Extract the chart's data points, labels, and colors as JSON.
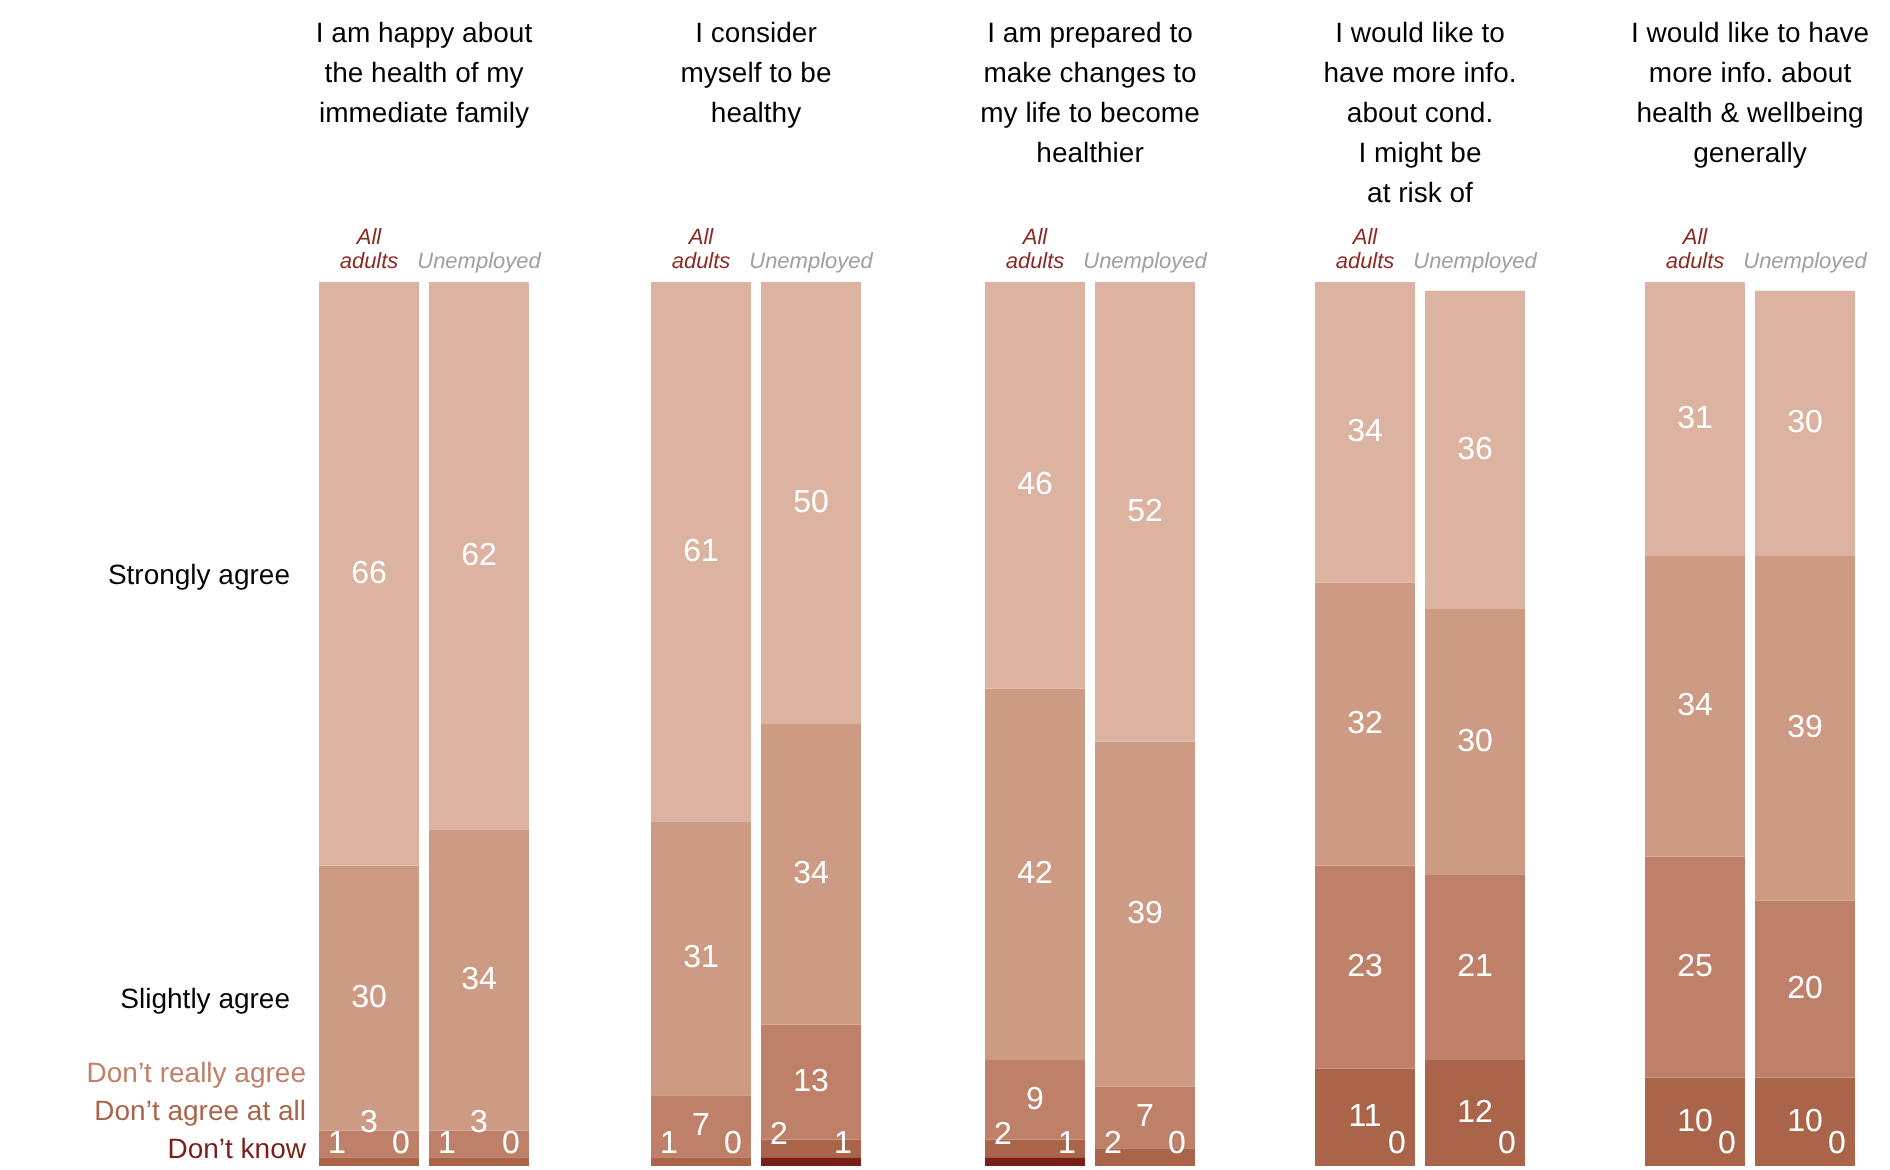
{
  "chart_data": [
    {
      "type": "bar",
      "stacked": true,
      "title": "I am happy about\nthe health of my\nimmediate family",
      "categories": [
        "All adults",
        "Unemployed"
      ],
      "ylim": [
        0,
        100
      ],
      "tick_labels": "x",
      "data_labels": true,
      "legend": false,
      "series": [
        {
          "name": "Don’t know",
          "color": "#7b1e18",
          "values": [
            0,
            0
          ]
        },
        {
          "name": "Don’t agree at all",
          "color": "#a9644a",
          "values": [
            1,
            1
          ]
        },
        {
          "name": "Don’t really agree",
          "color": "#bf806a",
          "values": [
            3,
            3
          ]
        },
        {
          "name": "Slightly agree",
          "color": "#cd9b84",
          "values": [
            30,
            34
          ]
        },
        {
          "name": "Strongly agree",
          "color": "#dbb3a0",
          "values": [
            66,
            62
          ]
        }
      ]
    },
    {
      "type": "bar",
      "stacked": true,
      "title": "I consider\nmyself to be\nhealthy",
      "categories": [
        "All adults",
        "Unemployed"
      ],
      "ylim": [
        0,
        100
      ],
      "tick_labels": "x",
      "data_labels": true,
      "legend": false,
      "series": [
        {
          "color": "#7b1e18",
          "values": [
            0,
            1
          ]
        },
        {
          "color": "#a9644a",
          "values": [
            1,
            2
          ]
        },
        {
          "color": "#bf806a",
          "values": [
            7,
            13
          ]
        },
        {
          "color": "#cd9b84",
          "values": [
            31,
            34
          ]
        },
        {
          "color": "#dbb3a0",
          "values": [
            61,
            50
          ]
        }
      ]
    },
    {
      "type": "bar",
      "stacked": true,
      "title": "I am prepared to\nmake changes to\nmy life to become\nhealthier",
      "categories": [
        "All adults",
        "Unemployed"
      ],
      "ylim": [
        0,
        100
      ],
      "tick_labels": "x",
      "data_labels": true,
      "legend": false,
      "series": [
        {
          "color": "#7b1e18",
          "values": [
            1,
            0
          ]
        },
        {
          "color": "#a9644a",
          "values": [
            2,
            2
          ]
        },
        {
          "color": "#bf806a",
          "values": [
            9,
            7
          ]
        },
        {
          "color": "#cd9b84",
          "values": [
            42,
            39
          ]
        },
        {
          "color": "#dbb3a0",
          "values": [
            46,
            52
          ]
        }
      ]
    },
    {
      "type": "bar",
      "stacked": true,
      "title": "I would like to\nhave more info.\nabout cond.\nI might be\nat risk of",
      "categories": [
        "All adults",
        "Unemployed"
      ],
      "ylim": [
        0,
        100
      ],
      "tick_labels": "x",
      "data_labels": true,
      "legend": false,
      "series": [
        {
          "color": "#7b1e18",
          "values": [
            0,
            0
          ]
        },
        {
          "color": "#a9644a",
          "values": [
            11,
            12
          ]
        },
        {
          "color": "#bf806a",
          "values": [
            23,
            21
          ]
        },
        {
          "color": "#cd9b84",
          "values": [
            32,
            30
          ]
        },
        {
          "color": "#dbb3a0",
          "values": [
            34,
            36
          ]
        }
      ]
    },
    {
      "type": "bar",
      "stacked": true,
      "title": "I would like to have\nmore info. about\nhealth & wellbeing\ngenerally",
      "categories": [
        "All adults",
        "Unemployed"
      ],
      "ylim": [
        0,
        100
      ],
      "tick_labels": "x",
      "data_labels": true,
      "legend": false,
      "series": [
        {
          "color": "#7b1e18",
          "values": [
            0,
            0
          ]
        },
        {
          "color": "#a9644a",
          "values": [
            10,
            10
          ]
        },
        {
          "color": "#bf806a",
          "values": [
            25,
            20
          ]
        },
        {
          "color": "#cd9b84",
          "values": [
            34,
            39
          ]
        },
        {
          "color": "#dbb3a0",
          "values": [
            31,
            30
          ]
        }
      ]
    }
  ]
}
